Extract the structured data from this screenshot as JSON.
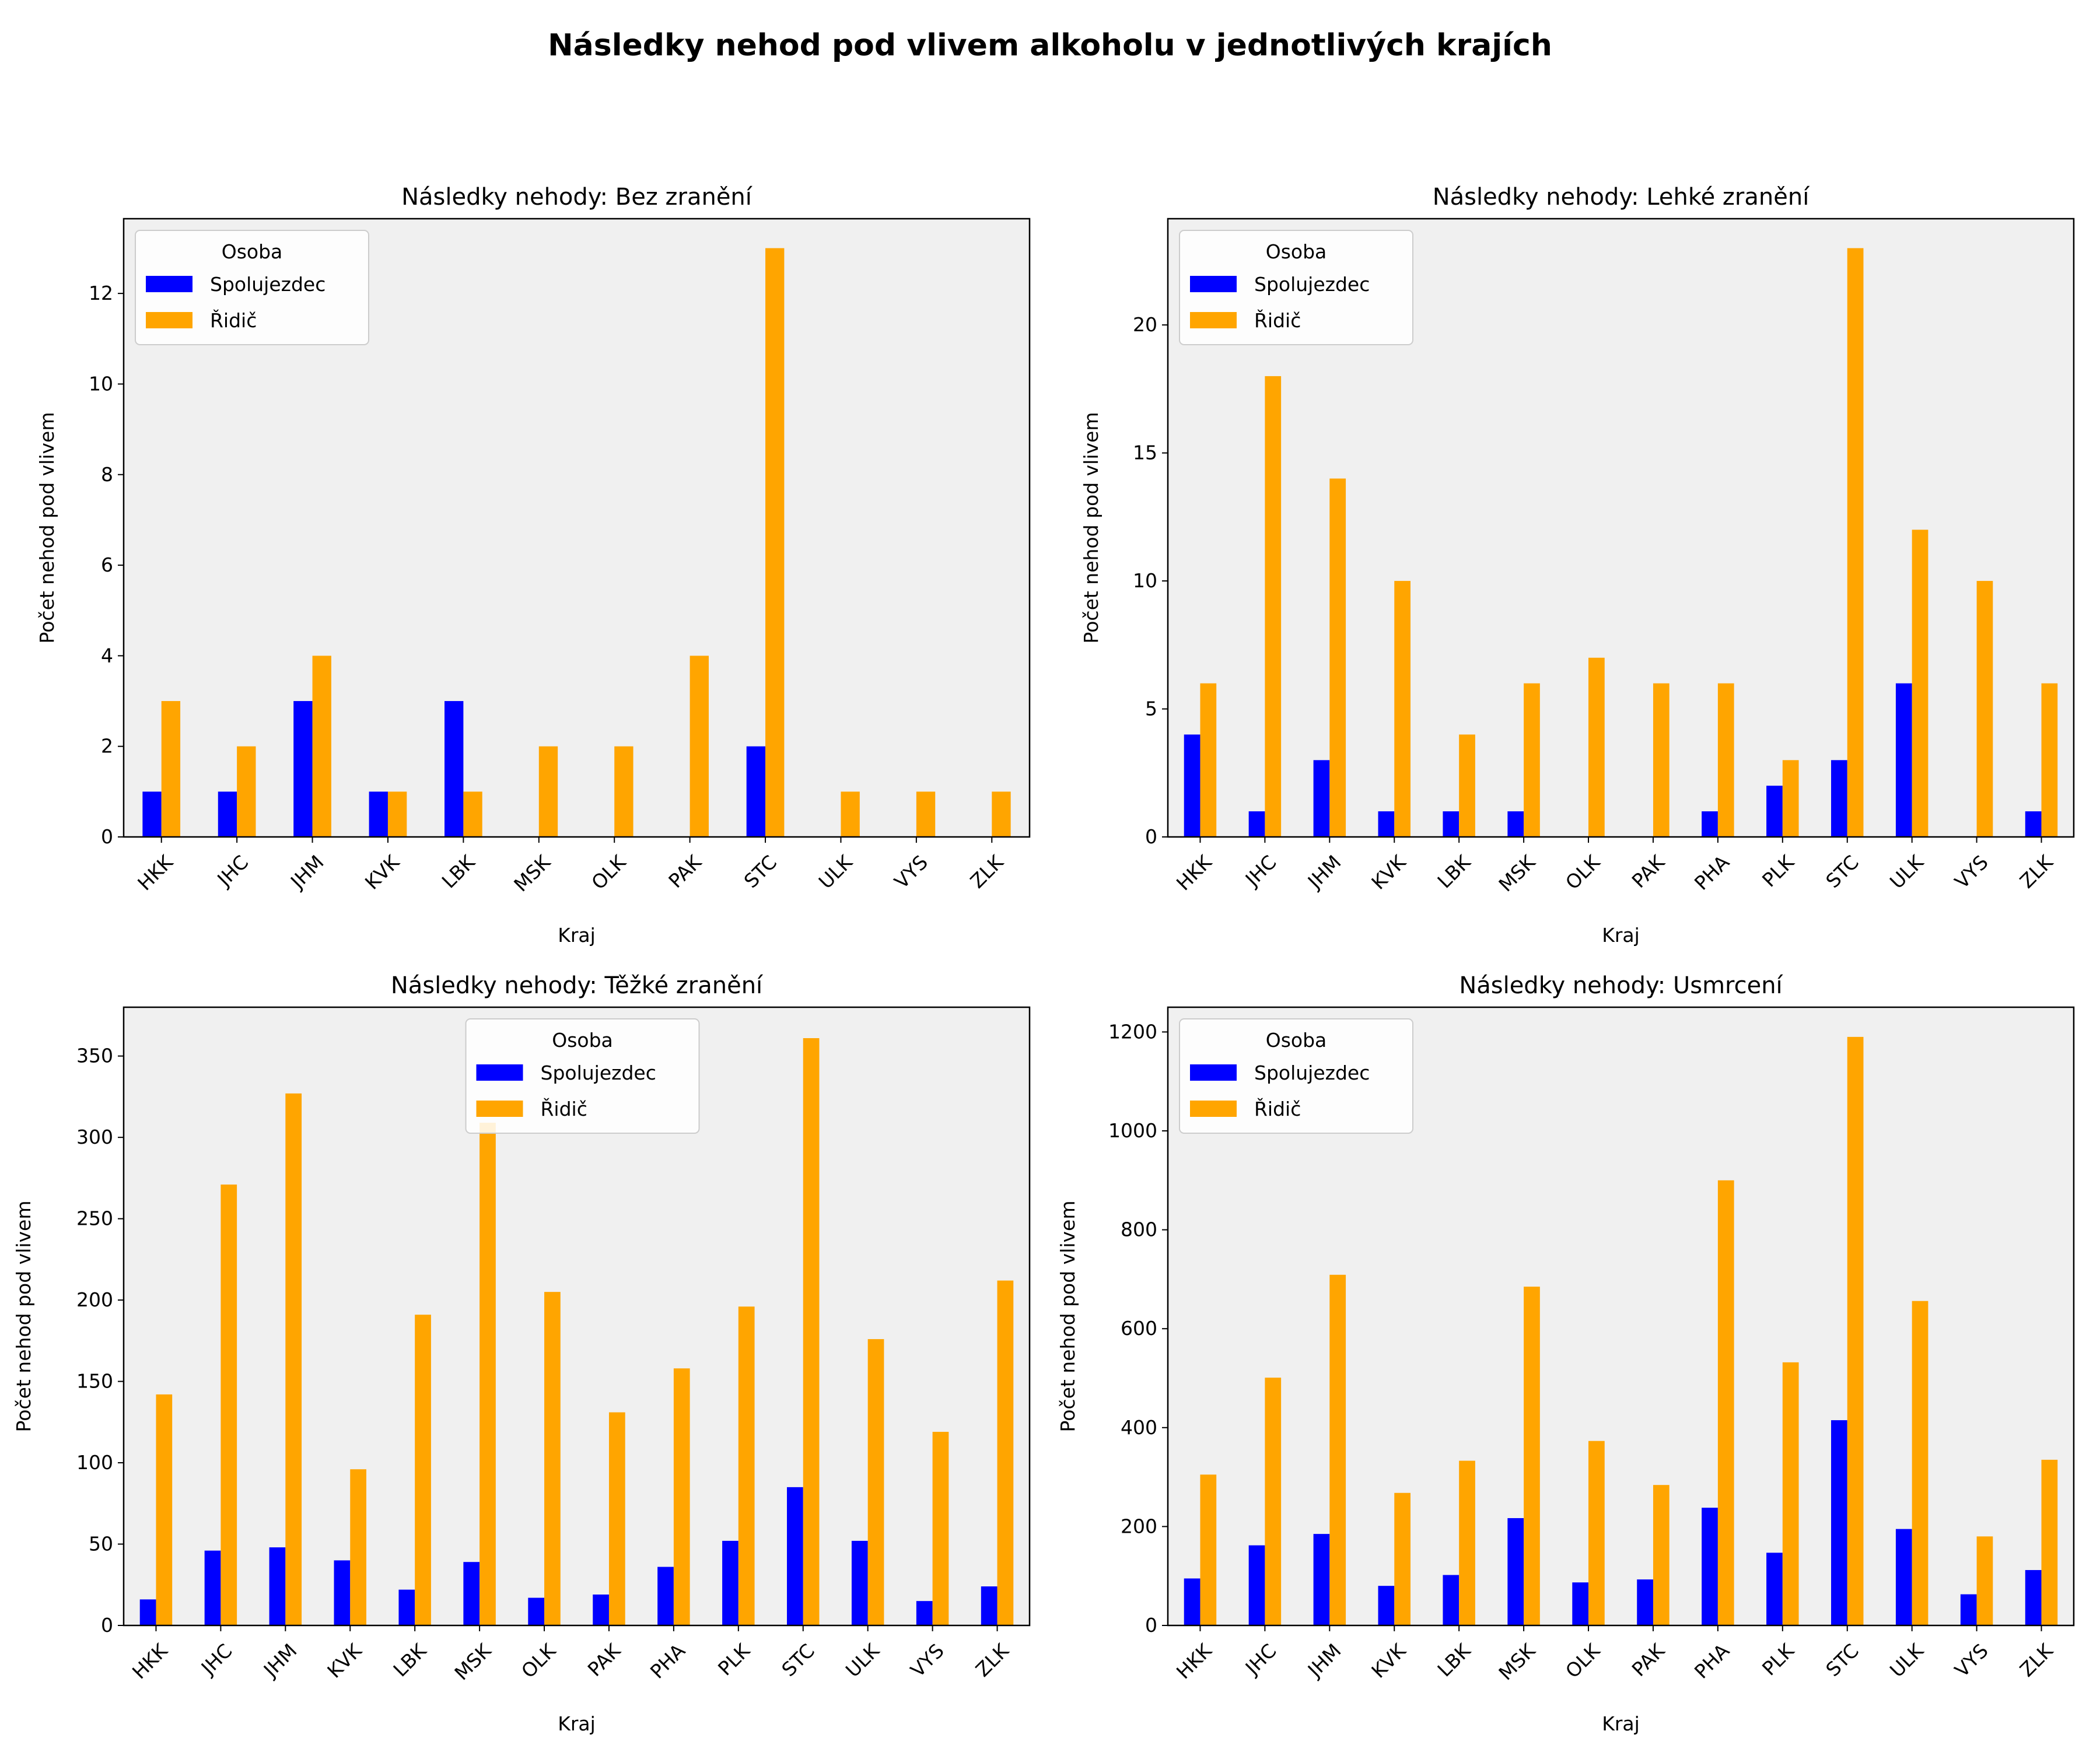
{
  "title": "Následky nehod pod vlivem alkoholu v jednotlivých krajích",
  "colors": {
    "spolujezdec": "#0000ff",
    "ridic": "#ffa500",
    "axes_bg": "#f0f0f0"
  },
  "chart_data": [
    {
      "type": "bar",
      "title": "Následky nehody: Bez zranění",
      "xlabel": "Kraj",
      "ylabel": "Počet nehod pod vlivem",
      "ylim": [
        0,
        13.65
      ],
      "yticks": [
        0,
        2,
        4,
        6,
        8,
        10,
        12
      ],
      "legend_title": "Osoba",
      "legend_position": "upper-left",
      "categories": [
        "HKK",
        "JHC",
        "JHM",
        "KVK",
        "LBK",
        "MSK",
        "OLK",
        "PAK",
        "STC",
        "ULK",
        "VYS",
        "ZLK"
      ],
      "series": [
        {
          "name": "Spolujezdec",
          "values": [
            1,
            1,
            3,
            1,
            3,
            null,
            null,
            null,
            2,
            null,
            null,
            null
          ]
        },
        {
          "name": "Řidič",
          "values": [
            3,
            2,
            4,
            1,
            1,
            2,
            2,
            4,
            13,
            1,
            1,
            1
          ]
        }
      ]
    },
    {
      "type": "bar",
      "title": "Následky nehody: Lehké zranění",
      "xlabel": "Kraj",
      "ylabel": "Počet nehod pod vlivem",
      "ylim": [
        0,
        24.15
      ],
      "yticks": [
        0,
        5,
        10,
        15,
        20
      ],
      "legend_title": "Osoba",
      "legend_position": "upper-left",
      "categories": [
        "HKK",
        "JHC",
        "JHM",
        "KVK",
        "LBK",
        "MSK",
        "OLK",
        "PAK",
        "PHA",
        "PLK",
        "STC",
        "ULK",
        "VYS",
        "ZLK"
      ],
      "series": [
        {
          "name": "Spolujezdec",
          "values": [
            4,
            1,
            3,
            1,
            1,
            1,
            null,
            null,
            1,
            2,
            3,
            6,
            null,
            1
          ]
        },
        {
          "name": "Řidič",
          "values": [
            6,
            18,
            14,
            10,
            4,
            6,
            7,
            6,
            6,
            3,
            23,
            12,
            10,
            6
          ]
        }
      ]
    },
    {
      "type": "bar",
      "title": "Následky nehody: Těžké zranění",
      "xlabel": "Kraj",
      "ylabel": "Počet nehod pod vlivem",
      "ylim": [
        0,
        380
      ],
      "yticks": [
        0,
        50,
        100,
        150,
        200,
        250,
        300,
        350
      ],
      "legend_title": "Osoba",
      "legend_position": "upper-center",
      "categories": [
        "HKK",
        "JHC",
        "JHM",
        "KVK",
        "LBK",
        "MSK",
        "OLK",
        "PAK",
        "PHA",
        "PLK",
        "STC",
        "ULK",
        "VYS",
        "ZLK"
      ],
      "series": [
        {
          "name": "Spolujezdec",
          "values": [
            16,
            46,
            48,
            40,
            22,
            39,
            17,
            19,
            36,
            52,
            85,
            52,
            15,
            24
          ]
        },
        {
          "name": "Řidič",
          "values": [
            142,
            271,
            327,
            96,
            191,
            309,
            205,
            131,
            158,
            196,
            361,
            176,
            119,
            212
          ]
        }
      ]
    },
    {
      "type": "bar",
      "title": "Následky nehody: Usmrcení",
      "xlabel": "Kraj",
      "ylabel": "Počet nehod pod vlivem",
      "ylim": [
        0,
        1250
      ],
      "yticks": [
        0,
        200,
        400,
        600,
        800,
        1000,
        1200
      ],
      "legend_title": "Osoba",
      "legend_position": "upper-left",
      "categories": [
        "HKK",
        "JHC",
        "JHM",
        "KVK",
        "LBK",
        "MSK",
        "OLK",
        "PAK",
        "PHA",
        "PLK",
        "STC",
        "ULK",
        "VYS",
        "ZLK"
      ],
      "series": [
        {
          "name": "Spolujezdec",
          "values": [
            95,
            162,
            185,
            80,
            102,
            217,
            87,
            93,
            238,
            147,
            415,
            195,
            63,
            112
          ]
        },
        {
          "name": "Řidič",
          "values": [
            305,
            501,
            709,
            268,
            333,
            685,
            373,
            284,
            900,
            532,
            1190,
            656,
            180,
            335
          ]
        }
      ]
    }
  ]
}
